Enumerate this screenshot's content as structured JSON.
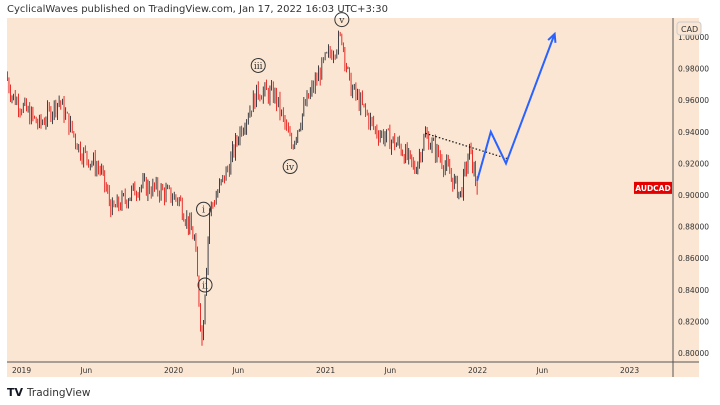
{
  "header": {
    "text": "CyclicalWaves published on TradingView.com, Jan 17, 2022 16:03 UTC+3:30"
  },
  "footer": {
    "brand": "TradingView",
    "logo_mark": "TV"
  },
  "colors": {
    "background": "#fae6d2",
    "up": "#131722",
    "down": "#e50000",
    "projection": "#2962ff",
    "axis": "#555555"
  },
  "chart_data": {
    "type": "candlestick",
    "symbol": "AUDCAD",
    "currency": "CAD",
    "ylim": [
      0.8,
      1.0
    ],
    "yticks": [
      "1.00000",
      "0.98000",
      "0.96000",
      "0.94000",
      "0.92000",
      "0.90000",
      "0.88000",
      "0.86000",
      "0.84000",
      "0.82000",
      "0.80000"
    ],
    "xticks": [
      {
        "t": 2019.0,
        "label": "2019"
      },
      {
        "t": 2019.45,
        "label": "Jun"
      },
      {
        "t": 2020.0,
        "label": "2020"
      },
      {
        "t": 2020.45,
        "label": "Jun"
      },
      {
        "t": 2021.0,
        "label": "2021"
      },
      {
        "t": 2021.45,
        "label": "Jun"
      },
      {
        "t": 2022.0,
        "label": "2022"
      },
      {
        "t": 2022.45,
        "label": "Jun"
      },
      {
        "t": 2023.0,
        "label": "2023"
      }
    ],
    "price_path": [
      [
        2018.96,
        0.976
      ],
      [
        2019.0,
        0.963
      ],
      [
        2019.18,
        0.944
      ],
      [
        2019.31,
        0.96
      ],
      [
        2019.45,
        0.928
      ],
      [
        2019.58,
        0.916
      ],
      [
        2019.66,
        0.89
      ],
      [
        2019.84,
        0.906
      ],
      [
        2019.97,
        0.903
      ],
      [
        2020.1,
        0.897
      ],
      [
        2020.2,
        0.872
      ],
      [
        2020.25,
        0.808
      ],
      [
        2020.3,
        0.89
      ],
      [
        2020.43,
        0.919
      ],
      [
        2020.5,
        0.941
      ],
      [
        2020.62,
        0.966
      ],
      [
        2020.73,
        0.963
      ],
      [
        2020.84,
        0.931
      ],
      [
        2020.93,
        0.957
      ],
      [
        2021.06,
        0.985
      ],
      [
        2021.17,
        1.0
      ],
      [
        2021.22,
        0.97
      ],
      [
        2021.39,
        0.941
      ],
      [
        2021.55,
        0.931
      ],
      [
        2021.65,
        0.916
      ],
      [
        2021.72,
        0.938
      ],
      [
        2021.85,
        0.919
      ],
      [
        2021.95,
        0.9
      ],
      [
        2022.01,
        0.928
      ],
      [
        2022.06,
        0.906
      ]
    ],
    "projection": [
      [
        2022.06,
        0.909
      ],
      [
        2022.15,
        0.94
      ],
      [
        2022.25,
        0.92
      ],
      [
        2022.57,
        1.002
      ]
    ],
    "trendline": [
      [
        2021.72,
        0.939
      ],
      [
        2022.26,
        0.923
      ]
    ],
    "wave_labels": [
      {
        "label": "v",
        "t": 2021.17,
        "p": 1.011
      },
      {
        "label": "iii",
        "t": 2020.62,
        "p": 0.982
      },
      {
        "label": "iv",
        "t": 2020.83,
        "p": 0.918
      },
      {
        "label": "i",
        "t": 2020.26,
        "p": 0.891
      },
      {
        "label": "ii",
        "t": 2020.27,
        "p": 0.843
      }
    ],
    "last_price_label": "AUDCAD",
    "last_price": 0.9045
  }
}
